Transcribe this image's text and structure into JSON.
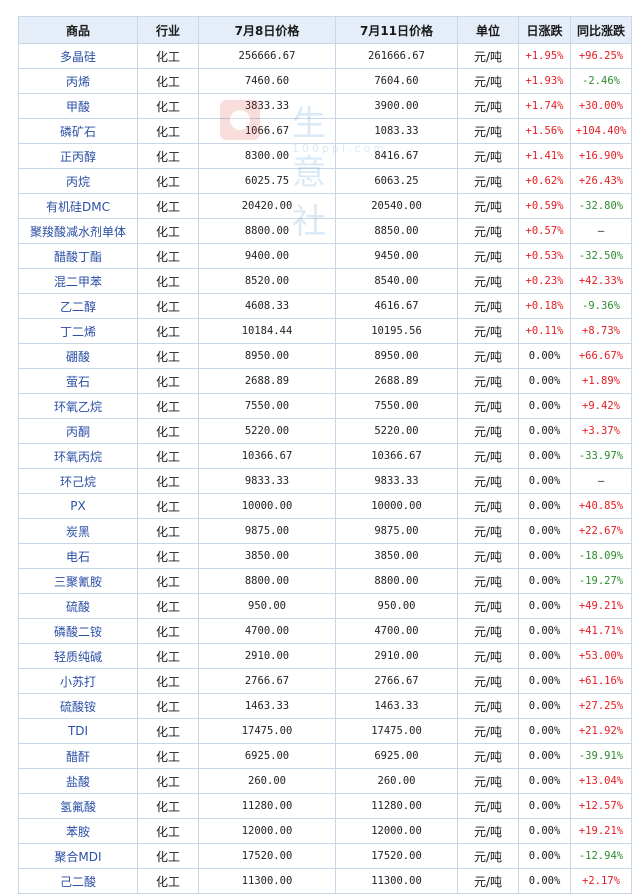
{
  "columns": [
    "商品",
    "行业",
    "7月8日价格",
    "7月11日价格",
    "单位",
    "日涨跌",
    "同比涨跌"
  ],
  "watermark": {
    "text": "生意社",
    "url": "100ppi.com"
  },
  "colors": {
    "up": "#e51c23",
    "down": "#2e8b2e",
    "link": "#2b4fa5",
    "header_bg": "#e4edf8",
    "border": "#c8d6e8"
  },
  "rows": [
    {
      "name": "多晶硅",
      "industry": "化工",
      "p1": "256666.67",
      "p2": "261666.67",
      "unit": "元/吨",
      "daily": "+1.95%",
      "yoy": "+96.25%"
    },
    {
      "name": "丙烯",
      "industry": "化工",
      "p1": "7460.60",
      "p2": "7604.60",
      "unit": "元/吨",
      "daily": "+1.93%",
      "yoy": "-2.46%"
    },
    {
      "name": "甲酸",
      "industry": "化工",
      "p1": "3833.33",
      "p2": "3900.00",
      "unit": "元/吨",
      "daily": "+1.74%",
      "yoy": "+30.00%"
    },
    {
      "name": "磷矿石",
      "industry": "化工",
      "p1": "1066.67",
      "p2": "1083.33",
      "unit": "元/吨",
      "daily": "+1.56%",
      "yoy": "+104.40%"
    },
    {
      "name": "正丙醇",
      "industry": "化工",
      "p1": "8300.00",
      "p2": "8416.67",
      "unit": "元/吨",
      "daily": "+1.41%",
      "yoy": "+16.90%"
    },
    {
      "name": "丙烷",
      "industry": "化工",
      "p1": "6025.75",
      "p2": "6063.25",
      "unit": "元/吨",
      "daily": "+0.62%",
      "yoy": "+26.43%"
    },
    {
      "name": "有机硅DMC",
      "industry": "化工",
      "p1": "20420.00",
      "p2": "20540.00",
      "unit": "元/吨",
      "daily": "+0.59%",
      "yoy": "-32.80%"
    },
    {
      "name": "聚羧酸减水剂单体",
      "industry": "化工",
      "p1": "8800.00",
      "p2": "8850.00",
      "unit": "元/吨",
      "daily": "+0.57%",
      "yoy": "—"
    },
    {
      "name": "醋酸丁酯",
      "industry": "化工",
      "p1": "9400.00",
      "p2": "9450.00",
      "unit": "元/吨",
      "daily": "+0.53%",
      "yoy": "-32.50%"
    },
    {
      "name": "混二甲苯",
      "industry": "化工",
      "p1": "8520.00",
      "p2": "8540.00",
      "unit": "元/吨",
      "daily": "+0.23%",
      "yoy": "+42.33%"
    },
    {
      "name": "乙二醇",
      "industry": "化工",
      "p1": "4608.33",
      "p2": "4616.67",
      "unit": "元/吨",
      "daily": "+0.18%",
      "yoy": "-9.36%"
    },
    {
      "name": "丁二烯",
      "industry": "化工",
      "p1": "10184.44",
      "p2": "10195.56",
      "unit": "元/吨",
      "daily": "+0.11%",
      "yoy": "+8.73%"
    },
    {
      "name": "硼酸",
      "industry": "化工",
      "p1": "8950.00",
      "p2": "8950.00",
      "unit": "元/吨",
      "daily": "0.00%",
      "yoy": "+66.67%"
    },
    {
      "name": "萤石",
      "industry": "化工",
      "p1": "2688.89",
      "p2": "2688.89",
      "unit": "元/吨",
      "daily": "0.00%",
      "yoy": "+1.89%"
    },
    {
      "name": "环氧乙烷",
      "industry": "化工",
      "p1": "7550.00",
      "p2": "7550.00",
      "unit": "元/吨",
      "daily": "0.00%",
      "yoy": "+9.42%"
    },
    {
      "name": "丙酮",
      "industry": "化工",
      "p1": "5220.00",
      "p2": "5220.00",
      "unit": "元/吨",
      "daily": "0.00%",
      "yoy": "+3.37%"
    },
    {
      "name": "环氧丙烷",
      "industry": "化工",
      "p1": "10366.67",
      "p2": "10366.67",
      "unit": "元/吨",
      "daily": "0.00%",
      "yoy": "-33.97%"
    },
    {
      "name": "环己烷",
      "industry": "化工",
      "p1": "9833.33",
      "p2": "9833.33",
      "unit": "元/吨",
      "daily": "0.00%",
      "yoy": "—"
    },
    {
      "name": "PX",
      "industry": "化工",
      "p1": "10000.00",
      "p2": "10000.00",
      "unit": "元/吨",
      "daily": "0.00%",
      "yoy": "+40.85%"
    },
    {
      "name": "炭黑",
      "industry": "化工",
      "p1": "9875.00",
      "p2": "9875.00",
      "unit": "元/吨",
      "daily": "0.00%",
      "yoy": "+22.67%"
    },
    {
      "name": "电石",
      "industry": "化工",
      "p1": "3850.00",
      "p2": "3850.00",
      "unit": "元/吨",
      "daily": "0.00%",
      "yoy": "-18.09%"
    },
    {
      "name": "三聚氰胺",
      "industry": "化工",
      "p1": "8800.00",
      "p2": "8800.00",
      "unit": "元/吨",
      "daily": "0.00%",
      "yoy": "-19.27%"
    },
    {
      "name": "硫酸",
      "industry": "化工",
      "p1": "950.00",
      "p2": "950.00",
      "unit": "元/吨",
      "daily": "0.00%",
      "yoy": "+49.21%"
    },
    {
      "name": "磷酸二铵",
      "industry": "化工",
      "p1": "4700.00",
      "p2": "4700.00",
      "unit": "元/吨",
      "daily": "0.00%",
      "yoy": "+41.71%"
    },
    {
      "name": "轻质纯碱",
      "industry": "化工",
      "p1": "2910.00",
      "p2": "2910.00",
      "unit": "元/吨",
      "daily": "0.00%",
      "yoy": "+53.00%"
    },
    {
      "name": "小苏打",
      "industry": "化工",
      "p1": "2766.67",
      "p2": "2766.67",
      "unit": "元/吨",
      "daily": "0.00%",
      "yoy": "+61.16%"
    },
    {
      "name": "硫酸铵",
      "industry": "化工",
      "p1": "1463.33",
      "p2": "1463.33",
      "unit": "元/吨",
      "daily": "0.00%",
      "yoy": "+27.25%"
    },
    {
      "name": "TDI",
      "industry": "化工",
      "p1": "17475.00",
      "p2": "17475.00",
      "unit": "元/吨",
      "daily": "0.00%",
      "yoy": "+21.92%"
    },
    {
      "name": "醋酐",
      "industry": "化工",
      "p1": "6925.00",
      "p2": "6925.00",
      "unit": "元/吨",
      "daily": "0.00%",
      "yoy": "-39.91%"
    },
    {
      "name": "盐酸",
      "industry": "化工",
      "p1": "260.00",
      "p2": "260.00",
      "unit": "元/吨",
      "daily": "0.00%",
      "yoy": "+13.04%"
    },
    {
      "name": "氢氟酸",
      "industry": "化工",
      "p1": "11280.00",
      "p2": "11280.00",
      "unit": "元/吨",
      "daily": "0.00%",
      "yoy": "+12.57%"
    },
    {
      "name": "苯胺",
      "industry": "化工",
      "p1": "12000.00",
      "p2": "12000.00",
      "unit": "元/吨",
      "daily": "0.00%",
      "yoy": "+19.21%"
    },
    {
      "name": "聚合MDI",
      "industry": "化工",
      "p1": "17520.00",
      "p2": "17520.00",
      "unit": "元/吨",
      "daily": "0.00%",
      "yoy": "-12.94%"
    },
    {
      "name": "己二酸",
      "industry": "化工",
      "p1": "11300.00",
      "p2": "11300.00",
      "unit": "元/吨",
      "daily": "0.00%",
      "yoy": "+2.17%"
    }
  ]
}
